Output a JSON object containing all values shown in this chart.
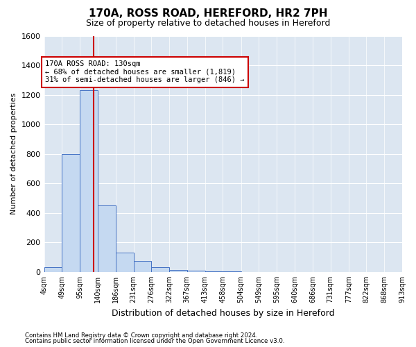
{
  "title": "170A, ROSS ROAD, HEREFORD, HR2 7PH",
  "subtitle": "Size of property relative to detached houses in Hereford",
  "xlabel": "Distribution of detached houses by size in Hereford",
  "ylabel": "Number of detached properties",
  "footer_line1": "Contains HM Land Registry data © Crown copyright and database right 2024.",
  "footer_line2": "Contains public sector information licensed under the Open Government Licence v3.0.",
  "bin_labels": [
    "4sqm",
    "49sqm",
    "95sqm",
    "140sqm",
    "186sqm",
    "231sqm",
    "276sqm",
    "322sqm",
    "367sqm",
    "413sqm",
    "458sqm",
    "504sqm",
    "549sqm",
    "595sqm",
    "640sqm",
    "686sqm",
    "731sqm",
    "777sqm",
    "822sqm",
    "868sqm",
    "913sqm"
  ],
  "bin_edges": [
    4,
    49,
    95,
    140,
    186,
    231,
    276,
    322,
    367,
    413,
    458,
    504,
    549,
    595,
    640,
    686,
    731,
    777,
    822,
    868,
    913
  ],
  "bar_values": [
    30,
    800,
    1230,
    450,
    130,
    75,
    30,
    15,
    8,
    5,
    3,
    0,
    0,
    0,
    0,
    0,
    0,
    0,
    0,
    0
  ],
  "property_line_x": 130,
  "annotation_line1": "170A ROSS ROAD: 130sqm",
  "annotation_line2": "← 68% of detached houses are smaller (1,819)",
  "annotation_line3": "31% of semi-detached houses are larger (846) →",
  "bar_color": "#c5d9f1",
  "bar_edgecolor": "#4472c4",
  "line_color": "#cc0000",
  "annotation_box_edgecolor": "#cc0000",
  "annotation_box_facecolor": "#ffffff",
  "background_color": "#dce6f1",
  "grid_color": "#ffffff",
  "ylim_max": 1600,
  "yticks": [
    0,
    200,
    400,
    600,
    800,
    1000,
    1200,
    1400,
    1600
  ]
}
